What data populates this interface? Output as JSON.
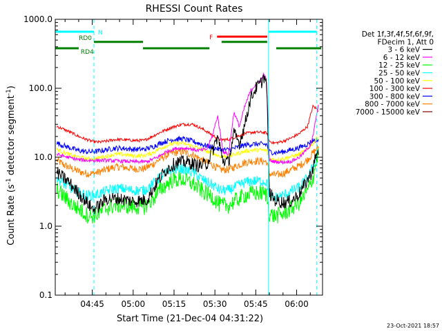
{
  "chart_data": {
    "type": "line",
    "title": "RHESSI Count Rates",
    "xlabel": "Start Time (21-Dec-04 04:31:22)",
    "ylabel_main": "Count Rate (s",
    "ylabel_sup1": "-1",
    "ylabel_mid": " detector segment",
    "ylabel_sup2": "-1",
    "ylabel_end": ")",
    "yscale": "log",
    "ylim": [
      0.1,
      1000.0
    ],
    "xlim_min": [
      271.4,
      369.5
    ],
    "x_ticks": [
      {
        "value": 285,
        "label": "04:45"
      },
      {
        "value": 300,
        "label": "05:00"
      },
      {
        "value": 315,
        "label": "05:15"
      },
      {
        "value": 330,
        "label": "05:30"
      },
      {
        "value": 345,
        "label": "05:45"
      },
      {
        "value": 360,
        "label": "06:00"
      }
    ],
    "y_ticks": [
      {
        "value": 0.1,
        "label": "0.1"
      },
      {
        "value": 1.0,
        "label": "1.0"
      },
      {
        "value": 10.0,
        "label": "10.0"
      },
      {
        "value": 100.0,
        "label": "100.0"
      },
      {
        "value": 1000.0,
        "label": "1000.0"
      }
    ],
    "legend_header": [
      "Det 1f,3f,4f,5f,6f,9f,",
      "FDecim 1, Att 0"
    ],
    "legend_position": "right",
    "series": [
      {
        "name": "3 - 6 keV",
        "color": "#000000",
        "x": [
          272,
          276,
          280,
          283,
          285,
          287,
          290,
          295,
          300,
          305,
          309,
          312,
          316,
          320,
          324,
          327,
          329,
          331,
          333,
          335,
          337,
          339,
          341,
          343,
          345,
          347,
          348,
          349,
          350,
          352,
          355,
          358,
          361,
          363,
          365,
          366,
          367,
          368
        ],
        "y": [
          6,
          4.5,
          3,
          2.2,
          1.8,
          1.9,
          2.5,
          2.5,
          2.3,
          2.4,
          4.5,
          6.5,
          8.5,
          8.5,
          7.5,
          8,
          12,
          20,
          9,
          8.5,
          22,
          16,
          30,
          70,
          100,
          120,
          150,
          110,
          3,
          2.4,
          2.2,
          2.3,
          3,
          4,
          5.5,
          7,
          10,
          12
        ]
      },
      {
        "name": "6 - 12 keV",
        "color": "#ff00ff",
        "x": [
          272,
          276,
          280,
          283,
          285,
          287,
          290,
          295,
          300,
          305,
          309,
          312,
          316,
          320,
          324,
          327,
          329,
          331,
          333,
          335,
          337,
          339,
          341,
          343,
          345,
          347,
          348,
          349,
          350,
          352,
          355,
          358,
          361,
          363,
          365,
          366,
          367,
          368
        ],
        "y": [
          11,
          10,
          9.2,
          9,
          9,
          9,
          9,
          8.8,
          8.6,
          8.6,
          10,
          12,
          13.5,
          13.5,
          12.5,
          13,
          20,
          40,
          12,
          11,
          45,
          28,
          55,
          90,
          115,
          130,
          165,
          120,
          9,
          8.6,
          8.5,
          8.7,
          10,
          12,
          15,
          20,
          35,
          55
        ]
      },
      {
        "name": "12 - 25 keV",
        "color": "#00ff00",
        "x": [
          272,
          275,
          278,
          280,
          283,
          285,
          287,
          290,
          293,
          296,
          300,
          304,
          307,
          310,
          314,
          318,
          322,
          326,
          329,
          332,
          335,
          338,
          341,
          344,
          347,
          349,
          350,
          352,
          355,
          358,
          361,
          364,
          366,
          368
        ],
        "y": [
          3.4,
          2.6,
          2.0,
          1.8,
          1.45,
          1.4,
          1.5,
          1.8,
          2.0,
          2.0,
          1.9,
          1.9,
          2.4,
          3.4,
          4.6,
          4.8,
          4.1,
          3.1,
          2.7,
          2.0,
          2.0,
          2.4,
          2.8,
          3.0,
          3.0,
          2.9,
          1.5,
          1.4,
          1.5,
          1.8,
          2.2,
          3.2,
          5.0,
          12
        ]
      },
      {
        "name": "25 - 50 keV",
        "color": "#00ffff",
        "x": [
          272,
          275,
          278,
          280,
          283,
          285,
          287,
          290,
          293,
          296,
          300,
          304,
          307,
          310,
          314,
          318,
          322,
          326,
          329,
          332,
          335,
          338,
          341,
          344,
          347,
          349,
          350,
          352,
          355,
          358,
          361,
          364,
          366,
          368
        ],
        "y": [
          5.0,
          4.0,
          3.4,
          3.1,
          2.8,
          2.8,
          2.9,
          3.2,
          3.5,
          3.5,
          3.3,
          3.3,
          4.0,
          5.2,
          6.6,
          6.8,
          6.0,
          4.6,
          4.0,
          3.3,
          3.3,
          3.8,
          4.3,
          4.5,
          4.5,
          4.4,
          2.7,
          2.6,
          2.8,
          3.2,
          3.7,
          5.0,
          7.2,
          13
        ]
      },
      {
        "name": "50 - 100 keV",
        "color": "#ffff00",
        "x": [
          272,
          275,
          278,
          280,
          283,
          285,
          287,
          290,
          293,
          296,
          300,
          304,
          307,
          310,
          314,
          318,
          322,
          326,
          329,
          332,
          335,
          338,
          341,
          344,
          347,
          349,
          350,
          352,
          355,
          358,
          361,
          364,
          366,
          368
        ],
        "y": [
          13,
          11.5,
          10.5,
          10,
          9.5,
          9.5,
          9.7,
          10.3,
          11,
          11,
          10.5,
          10.5,
          11.5,
          13.5,
          15.5,
          16,
          14.5,
          12.5,
          11.5,
          10.3,
          10.3,
          11.2,
          12.2,
          12.7,
          12.7,
          12.5,
          9.5,
          9.2,
          9.5,
          10.2,
          11,
          13,
          16,
          20
        ]
      },
      {
        "name": "100 - 300 keV",
        "color": "#ff0000",
        "x": [
          272,
          275,
          278,
          280,
          283,
          285,
          287,
          290,
          293,
          296,
          300,
          304,
          307,
          310,
          314,
          318,
          322,
          326,
          329,
          332,
          335,
          338,
          341,
          344,
          347,
          349,
          350,
          352,
          355,
          358,
          361,
          364,
          366,
          368
        ],
        "y": [
          28,
          25,
          22,
          20,
          18,
          17,
          16.5,
          17,
          18,
          18,
          17.5,
          17.5,
          20,
          23,
          27,
          30,
          30,
          25,
          21,
          18,
          18,
          20,
          22,
          23,
          23,
          22.5,
          17,
          16,
          17,
          19,
          22,
          28,
          55,
          48
        ]
      },
      {
        "name": "300 - 800 keV",
        "color": "#0000ff",
        "x": [
          272,
          275,
          278,
          280,
          283,
          285,
          287,
          290,
          293,
          296,
          300,
          304,
          307,
          310,
          314,
          318,
          322,
          326,
          329,
          332,
          335,
          338,
          341,
          344,
          347,
          349,
          350,
          352,
          355,
          358,
          361,
          364,
          366,
          368
        ],
        "y": [
          16,
          14.5,
          13.2,
          12.5,
          12,
          12,
          12.2,
          12.8,
          13.5,
          13.5,
          13,
          13,
          14,
          16,
          18,
          18.5,
          17,
          15,
          14,
          12.8,
          12.8,
          13.8,
          15,
          15.5,
          15.5,
          15.3,
          12,
          11.6,
          12,
          12.8,
          13.8,
          15.5,
          17.5,
          18
        ]
      },
      {
        "name": "800 - 7000 keV",
        "color": "#ff8000",
        "x": [
          272,
          275,
          278,
          280,
          283,
          285,
          287,
          290,
          293,
          296,
          300,
          304,
          307,
          310,
          314,
          318,
          322,
          326,
          329,
          332,
          335,
          338,
          341,
          344,
          347,
          349,
          350,
          352,
          355,
          358,
          361,
          364,
          366,
          368
        ],
        "y": [
          9,
          7.6,
          6.7,
          6.2,
          5.8,
          5.8,
          6.0,
          6.6,
          7.2,
          7.2,
          6.8,
          6.8,
          7.8,
          9.5,
          11.5,
          12,
          10.8,
          8.8,
          7.8,
          6.6,
          6.6,
          7.5,
          8.4,
          8.8,
          8.8,
          8.6,
          5.8,
          5.5,
          5.8,
          6.6,
          7.5,
          9.2,
          11.5,
          14
        ]
      },
      {
        "name": "7000 - 15000 keV",
        "color": "#800000",
        "x": [
          272,
          275,
          278,
          280,
          283,
          285,
          287,
          290,
          293,
          296,
          300,
          304,
          307,
          310,
          314,
          318,
          322,
          326,
          329,
          332,
          335,
          338,
          341,
          344,
          347,
          349,
          350,
          352,
          355,
          358,
          361,
          364,
          366,
          368
        ],
        "y": [
          13,
          11.5,
          10.5,
          10,
          9.5,
          9.5,
          9.7,
          10.3,
          11,
          11,
          10.5,
          10.5,
          11.5,
          13.5,
          15.5,
          16,
          14.5,
          12.5,
          11.5,
          10.3,
          10.3,
          11.2,
          12.2,
          12.7,
          12.7,
          12.5,
          9.5,
          9.2,
          9.5,
          10.2,
          11,
          13,
          16,
          20
        ]
      }
    ],
    "vertical_lines": [
      {
        "x": 271.4,
        "style": "solid",
        "color": "#00ffff"
      },
      {
        "x": 285.6,
        "style": "dashed",
        "color": "#00ffff"
      },
      {
        "x": 349.7,
        "style": "solid",
        "color": "#00ffff"
      },
      {
        "x": 367.4,
        "style": "dashed",
        "color": "#00ffff"
      }
    ],
    "flag_bars": [
      {
        "label": "N",
        "color": "#00ffff",
        "level": 660,
        "segments": [
          [
            271.4,
            285.6
          ],
          [
            349.7,
            367.4
          ]
        ]
      },
      {
        "label": "F",
        "color": "#ff0000",
        "level": 560,
        "segments": [
          [
            330.8,
            349.2
          ]
        ]
      },
      {
        "label": "RD0",
        "color": "#008000",
        "level": 470,
        "segments": [
          [
            285.6,
            303.6
          ],
          [
            332.5,
            349.2
          ]
        ]
      },
      {
        "label": "RD4",
        "color": "#008000",
        "level": 380,
        "segments": [
          [
            271.4,
            280.0
          ],
          [
            303.6,
            328.0
          ],
          [
            352.5,
            369.0
          ]
        ]
      }
    ],
    "timestamp": "23-Oct-2021 18:57"
  }
}
